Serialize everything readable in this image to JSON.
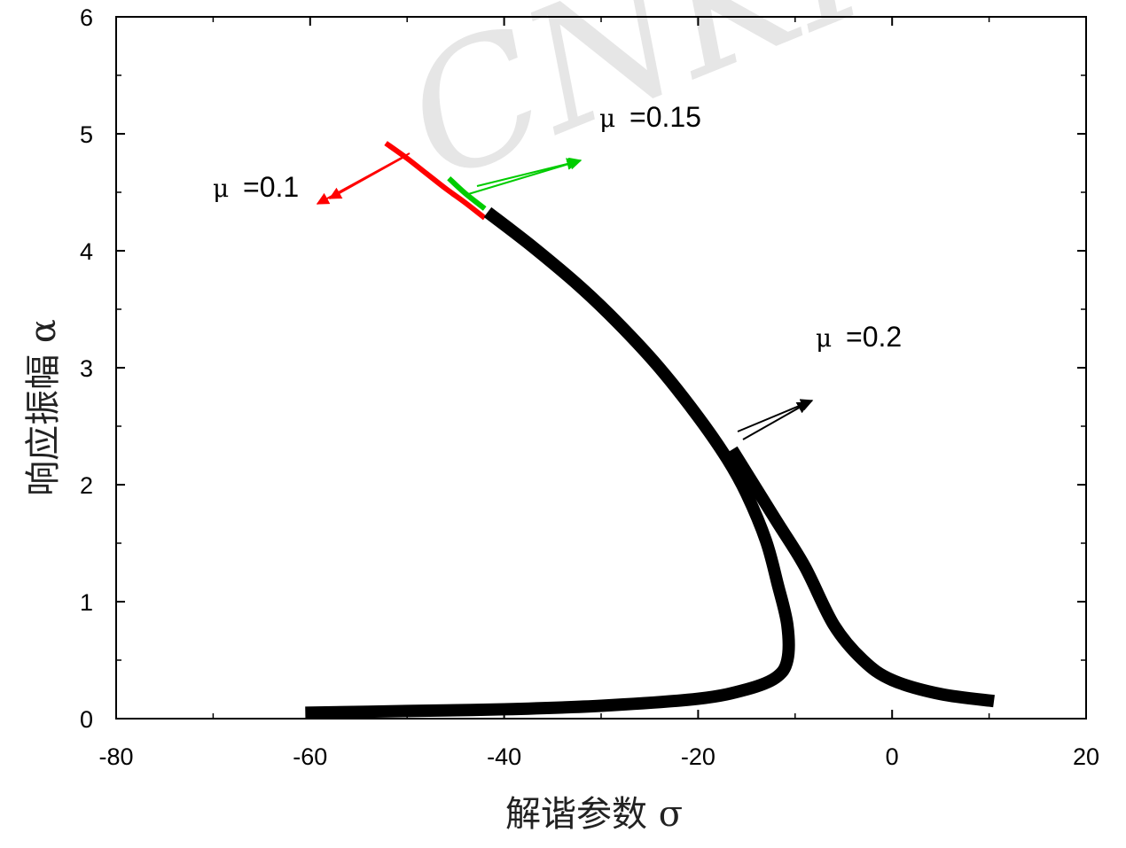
{
  "watermark": "CNKI",
  "chart_data": {
    "type": "line",
    "xlabel": "解谐参数 σ",
    "ylabel": "响应振幅 α",
    "xlim": [
      -80,
      20
    ],
    "ylim": [
      0,
      6
    ],
    "xticks": [
      -80,
      -60,
      -40,
      -20,
      0,
      20
    ],
    "yticks": [
      0,
      1,
      2,
      3,
      4,
      5,
      6
    ],
    "grid": false,
    "series": [
      {
        "name": "μ =0.1",
        "color": "#ff0000",
        "points": [
          [
            -52.2,
            4.92
          ],
          [
            -50,
            4.79
          ],
          [
            -48,
            4.66
          ],
          [
            -46,
            4.53
          ],
          [
            -44,
            4.41
          ],
          [
            -42,
            4.28
          ]
        ]
      },
      {
        "name": "μ =0.15",
        "color": "#00cc00",
        "points": [
          [
            -45.7,
            4.62
          ],
          [
            -44,
            4.49
          ],
          [
            -42,
            4.36
          ]
        ]
      },
      {
        "name": "μ =0.2",
        "color": "#000000",
        "points": [
          [
            -41.7,
            4.33
          ],
          [
            -37,
            4.03
          ],
          [
            -32,
            3.68
          ],
          [
            -28,
            3.36
          ],
          [
            -24,
            3.0
          ],
          [
            -20,
            2.58
          ],
          [
            -17,
            2.22
          ],
          [
            -15,
            1.92
          ],
          [
            -13,
            1.52
          ],
          [
            -11.8,
            1.15
          ],
          [
            -10.8,
            0.8
          ],
          [
            -10.8,
            0.5
          ],
          [
            -12,
            0.35
          ],
          [
            -15,
            0.25
          ],
          [
            -20,
            0.17
          ],
          [
            -30,
            0.11
          ],
          [
            -40,
            0.08
          ],
          [
            -50,
            0.065
          ],
          [
            -60.5,
            0.05
          ]
        ]
      },
      {
        "name": "μ =0.2",
        "color": "#000000",
        "points": [
          [
            -16.5,
            2.3
          ],
          [
            -12,
            1.7
          ],
          [
            -9,
            1.3
          ],
          [
            -6,
            0.8
          ],
          [
            -3,
            0.5
          ],
          [
            0,
            0.33
          ],
          [
            5,
            0.21
          ],
          [
            10.5,
            0.15
          ]
        ]
      }
    ],
    "annotations": [
      {
        "mu": "μ",
        "text": "=0.1",
        "color": "#ff0000"
      },
      {
        "mu": "μ",
        "text": "=0.15",
        "color": "#00cc00"
      },
      {
        "mu": "μ",
        "text": "=0.2",
        "color": "#000000"
      }
    ]
  }
}
